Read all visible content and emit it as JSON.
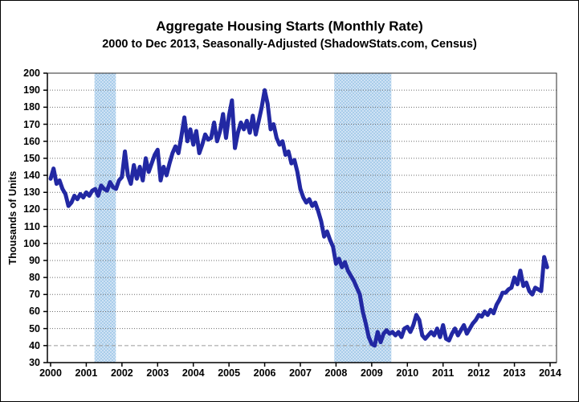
{
  "chart": {
    "title": "Aggregate Housing Starts (Monthly Rate)",
    "subtitle": "2000 to Dec 2013, Seasonally-Adjusted (ShadowStats.com, Census)",
    "y_axis_title": "Thousands of Units"
  },
  "chart_data": {
    "type": "line",
    "title": "Aggregate Housing Starts (Monthly Rate)",
    "subtitle": "2000 to Dec 2013, Seasonally-Adjusted (ShadowStats.com, Census)",
    "xlabel": "",
    "ylabel": "Thousands of Units",
    "x_tick_labels": [
      "2000",
      "2001",
      "2002",
      "2003",
      "2004",
      "2005",
      "2006",
      "2007",
      "2008",
      "2009",
      "2010",
      "2011",
      "2012",
      "2013",
      "2014"
    ],
    "y_ticks": [
      200,
      190,
      180,
      170,
      160,
      150,
      140,
      130,
      120,
      110,
      100,
      90,
      80,
      70,
      60,
      50,
      40,
      30
    ],
    "ylim": [
      30,
      200
    ],
    "xlim_years": [
      2000,
      2014.19
    ],
    "grid": true,
    "legend": "none",
    "series": [
      {
        "name": "Aggregate Housing Starts (thousands of units, monthly)",
        "start": "2000-01",
        "end": "2013-12",
        "frequency": "monthly",
        "values": [
          138,
          144,
          135,
          137,
          132,
          129,
          122,
          124,
          128,
          126,
          129,
          127,
          130,
          128,
          131,
          132,
          128,
          134,
          132,
          131,
          136,
          133,
          132,
          137,
          139,
          154,
          140,
          135,
          146,
          138,
          145,
          137,
          150,
          142,
          147,
          152,
          155,
          137,
          145,
          140,
          147,
          153,
          157,
          153,
          163,
          174,
          160,
          167,
          158,
          166,
          153,
          158,
          164,
          161,
          162,
          171,
          160,
          166,
          176,
          162,
          175,
          184,
          156,
          165,
          171,
          167,
          172,
          165,
          175,
          164,
          172,
          180,
          190,
          182,
          167,
          170,
          162,
          158,
          160,
          152,
          154,
          147,
          149,
          142,
          132,
          127,
          124,
          126,
          122,
          124,
          119,
          113,
          104,
          107,
          102,
          98,
          88,
          91,
          86,
          89,
          84,
          81,
          78,
          74,
          70,
          60,
          53,
          45,
          41,
          40,
          48,
          42,
          47,
          49,
          47,
          48,
          46,
          48,
          45,
          50,
          51,
          48,
          52,
          58,
          55,
          46,
          44,
          46,
          48,
          46,
          50,
          45,
          52,
          44,
          43,
          47,
          50,
          46,
          49,
          52,
          47,
          50,
          53,
          55,
          58,
          57,
          60,
          58,
          61,
          59,
          64,
          67,
          71,
          71,
          73,
          74,
          80,
          76,
          84,
          75,
          77,
          72,
          70,
          74,
          73,
          72,
          92,
          86
        ]
      }
    ],
    "recession_bands": [
      {
        "start_year": 2001.23,
        "end_year": 2001.83
      },
      {
        "start_year": 2007.95,
        "end_year": 2009.55
      }
    ],
    "colors": {
      "line": "#2228A3",
      "band_light": "#cfe2f4",
      "band_dot": "#a9cdea",
      "grid": "#6e6e6e",
      "grid_40": "#9a9a9a",
      "axis": "#2b2b2b",
      "text": "#000000"
    }
  }
}
